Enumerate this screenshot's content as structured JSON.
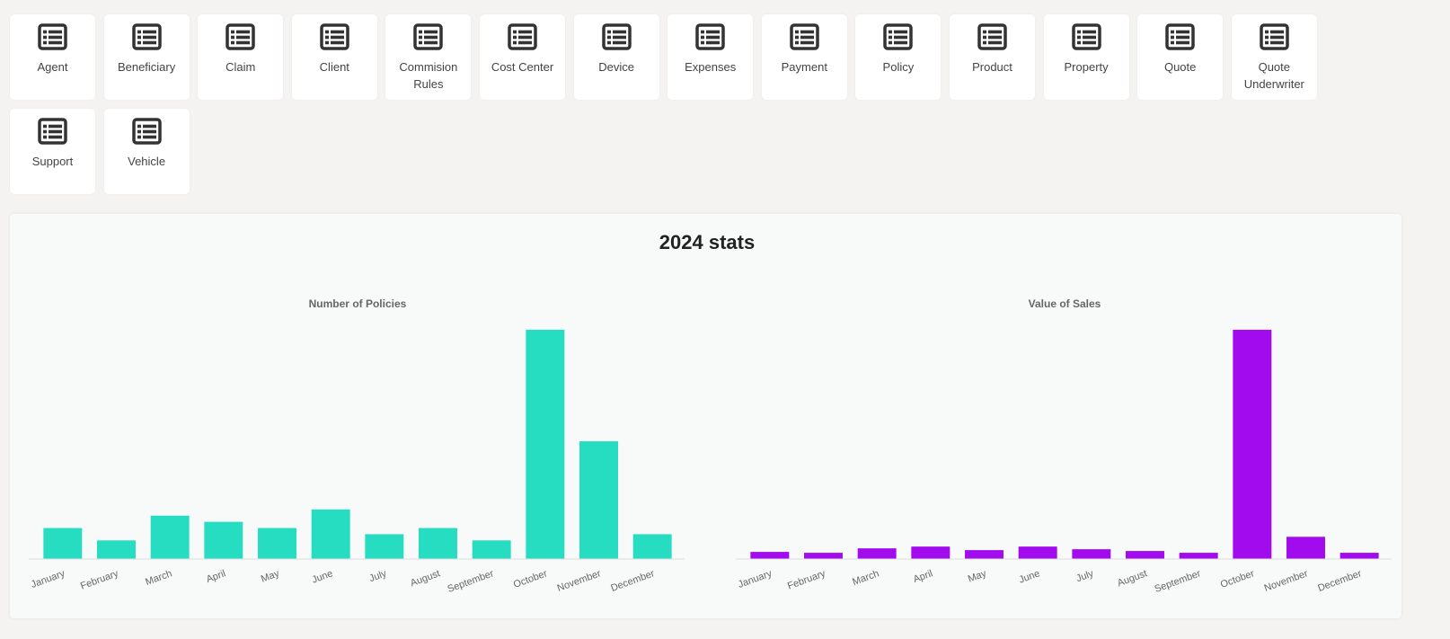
{
  "tiles": [
    "Agent",
    "Beneficiary",
    "Claim",
    "Client",
    "Commision Rules",
    "Cost Center",
    "Device",
    "Expenses",
    "Payment",
    "Policy",
    "Product",
    "Property",
    "Quote",
    "Quote Underwriter",
    "Support",
    "Vehicle"
  ],
  "stats_title": "2024 stats",
  "chart_data": [
    {
      "type": "bar",
      "title": "Number of Policies",
      "categories": [
        "January",
        "February",
        "March",
        "April",
        "May",
        "June",
        "July",
        "August",
        "September",
        "October",
        "November",
        "December"
      ],
      "values": [
        5,
        3,
        7,
        6,
        5,
        8,
        4,
        5,
        3,
        37,
        19,
        4
      ],
      "color": "#26dcc1",
      "ylim": [
        0,
        38
      ]
    },
    {
      "type": "bar",
      "title": "Value of Sales",
      "categories": [
        "January",
        "February",
        "March",
        "April",
        "May",
        "June",
        "July",
        "August",
        "September",
        "October",
        "November",
        "December"
      ],
      "values": [
        8,
        7,
        12,
        14,
        10,
        14,
        11,
        9,
        7,
        258,
        25,
        7
      ],
      "color": "#a20bee",
      "ylim": [
        0,
        265
      ]
    }
  ]
}
